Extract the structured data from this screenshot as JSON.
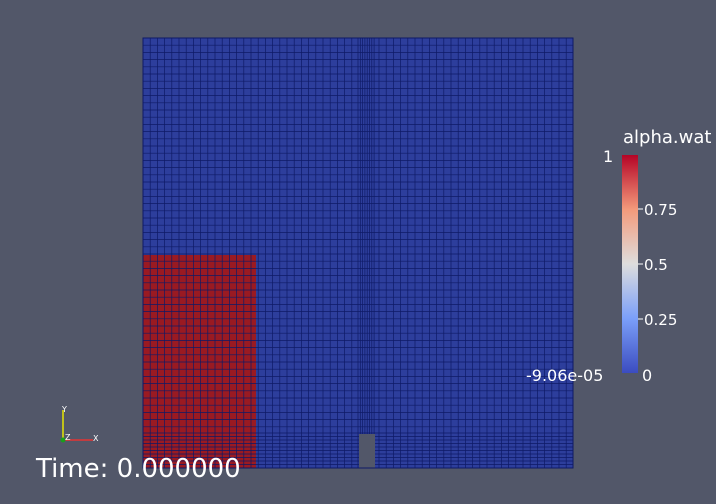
{
  "colorbar": {
    "title": "alpha.wat",
    "max_label": "1",
    "ticks": [
      "0.75",
      "0.5",
      "0.25"
    ],
    "min_label": "-9.06e-05",
    "zero_label": "0",
    "colors": {
      "low": "#3b4cc0",
      "mid": "#dddddd",
      "high": "#b40426"
    }
  },
  "time_label": "Time: 0.000000",
  "axes": {
    "y": "Y",
    "z": "Z",
    "x": "X"
  },
  "field": {
    "background_color": "#2d3e9c",
    "water_color": "#9a1a22",
    "gridline_color": "#0e1a66"
  }
}
